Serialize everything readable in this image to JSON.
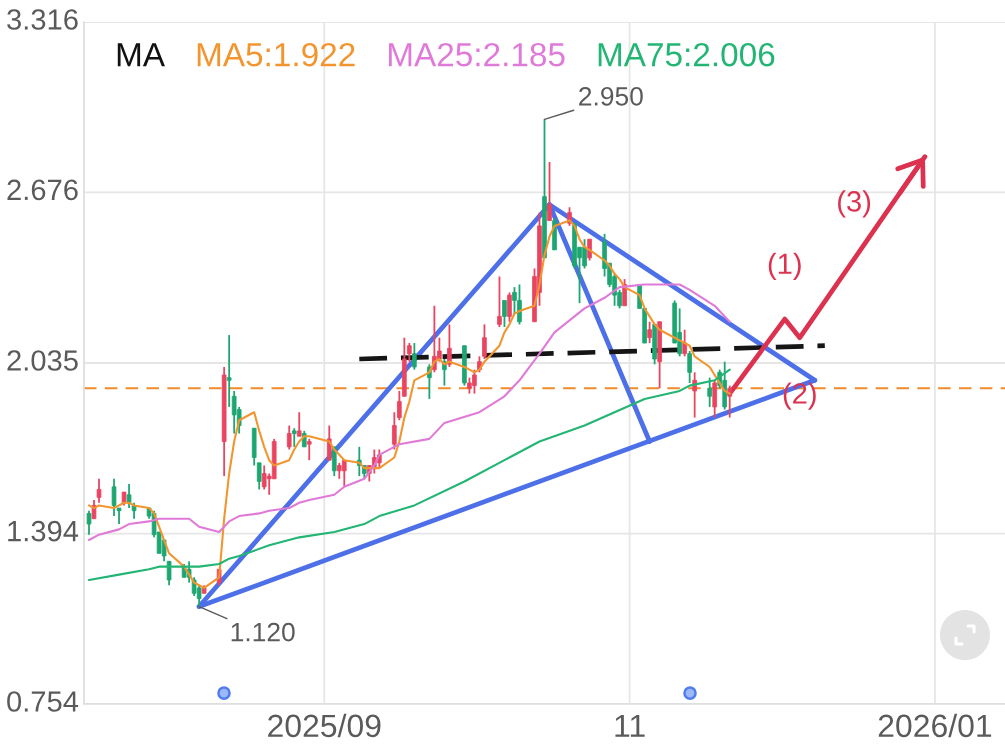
{
  "chart_data": {
    "type": "candlestick",
    "x": [
      "2025-07-16",
      "2025-07-17",
      "2025-07-18",
      "2025-07-21",
      "2025-07-22",
      "2025-07-23",
      "2025-07-24",
      "2025-07-25",
      "2025-07-28",
      "2025-07-29",
      "2025-07-30",
      "2025-07-31",
      "2025-08-01",
      "2025-08-04",
      "2025-08-05",
      "2025-08-06",
      "2025-08-07",
      "2025-08-08",
      "2025-08-11",
      "2025-08-12",
      "2025-08-13",
      "2025-08-14",
      "2025-08-15",
      "2025-08-18",
      "2025-08-19",
      "2025-08-20",
      "2025-08-21",
      "2025-08-22",
      "2025-08-25",
      "2025-08-26",
      "2025-08-27",
      "2025-08-28",
      "2025-08-29",
      "2025-09-02",
      "2025-09-03",
      "2025-09-04",
      "2025-09-05",
      "2025-09-08",
      "2025-09-09",
      "2025-09-10",
      "2025-09-11",
      "2025-09-12",
      "2025-09-15",
      "2025-09-16",
      "2025-09-17",
      "2025-09-18",
      "2025-09-19",
      "2025-09-22",
      "2025-09-23",
      "2025-09-24",
      "2025-09-25",
      "2025-09-26",
      "2025-09-29",
      "2025-09-30",
      "2025-10-01",
      "2025-10-02",
      "2025-10-03",
      "2025-10-06",
      "2025-10-07",
      "2025-10-08",
      "2025-10-09",
      "2025-10-10",
      "2025-10-13",
      "2025-10-14",
      "2025-10-15",
      "2025-10-16",
      "2025-10-17",
      "2025-10-20",
      "2025-10-21",
      "2025-10-22",
      "2025-10-23",
      "2025-10-24",
      "2025-10-27",
      "2025-10-28",
      "2025-10-29",
      "2025-10-30",
      "2025-10-31",
      "2025-11-03",
      "2025-11-04",
      "2025-11-05",
      "2025-11-06",
      "2025-11-07",
      "2025-11-10",
      "2025-11-11",
      "2025-11-12",
      "2025-11-13",
      "2025-11-14",
      "2025-11-17",
      "2025-11-18",
      "2025-11-19",
      "2025-11-20",
      "2025-11-21"
    ],
    "ohlc": [
      [
        1.47,
        1.48,
        1.39,
        1.43
      ],
      [
        1.45,
        1.52,
        1.45,
        1.5
      ],
      [
        1.53,
        1.6,
        1.51,
        1.56
      ],
      [
        1.57,
        1.6,
        1.46,
        1.5
      ],
      [
        1.49,
        1.49,
        1.43,
        1.48
      ],
      [
        1.51,
        1.55,
        1.5,
        1.55
      ],
      [
        1.54,
        1.58,
        1.49,
        1.51
      ],
      [
        1.5,
        1.51,
        1.45,
        1.48
      ],
      [
        1.49,
        1.49,
        1.45,
        1.46
      ],
      [
        1.47,
        1.48,
        1.38,
        1.39
      ],
      [
        1.4,
        1.4,
        1.32,
        1.32
      ],
      [
        1.37,
        1.37,
        1.29,
        1.31
      ],
      [
        1.29,
        1.29,
        1.2,
        1.22
      ],
      [
        1.27,
        1.28,
        1.23,
        1.23
      ],
      [
        1.26,
        1.29,
        1.21,
        1.23
      ],
      [
        1.22,
        1.23,
        1.16,
        1.17
      ],
      [
        1.19,
        1.2,
        1.12,
        1.15
      ],
      [
        1.17,
        1.2,
        1.17,
        1.19
      ],
      [
        1.21,
        1.26,
        1.2,
        1.26
      ],
      [
        1.74,
        2.02,
        1.61,
        1.99
      ],
      [
        1.98,
        2.14,
        1.87,
        1.97
      ],
      [
        1.91,
        1.93,
        1.77,
        1.84
      ],
      [
        1.86,
        1.87,
        1.77,
        1.8
      ],
      [
        1.79,
        1.79,
        1.65,
        1.68
      ],
      [
        1.66,
        1.66,
        1.56,
        1.59
      ],
      [
        1.57,
        1.65,
        1.56,
        1.62
      ],
      [
        1.6,
        1.62,
        1.54,
        1.61
      ],
      [
        1.6,
        1.75,
        1.6,
        1.74
      ],
      [
        1.72,
        1.8,
        1.71,
        1.77
      ],
      [
        1.78,
        1.79,
        1.72,
        1.77
      ],
      [
        1.76,
        1.85,
        1.76,
        1.78
      ],
      [
        1.77,
        1.78,
        1.72,
        1.72
      ],
      [
        1.73,
        1.75,
        1.67,
        1.74
      ],
      [
        1.67,
        1.8,
        1.67,
        1.75
      ],
      [
        1.72,
        1.72,
        1.61,
        1.63
      ],
      [
        1.63,
        1.66,
        1.6,
        1.65
      ],
      [
        1.63,
        1.67,
        1.57,
        1.67
      ],
      [
        1.67,
        1.72,
        1.61,
        1.65
      ],
      [
        1.65,
        1.65,
        1.6,
        1.62
      ],
      [
        1.62,
        1.65,
        1.59,
        1.65
      ],
      [
        1.64,
        1.71,
        1.62,
        1.68
      ],
      [
        1.66,
        1.71,
        1.64,
        1.69
      ],
      [
        1.73,
        1.85,
        1.71,
        1.8
      ],
      [
        1.83,
        1.93,
        1.82,
        1.89
      ],
      [
        1.91,
        2.13,
        1.91,
        2.05
      ],
      [
        2.07,
        2.11,
        2.04,
        2.1
      ],
      [
        2.07,
        2.11,
        2.01,
        2.02
      ],
      [
        2.02,
        2.03,
        1.9,
        1.98
      ],
      [
        2.01,
        2.25,
        2.0,
        2.06
      ],
      [
        2.05,
        2.13,
        2.04,
        2.08
      ],
      [
        2.04,
        2.05,
        1.95,
        2.01
      ],
      [
        2.03,
        2.18,
        2.02,
        2.09
      ],
      [
        2.1,
        2.1,
        1.95,
        1.96
      ],
      [
        1.94,
        1.98,
        1.92,
        1.96
      ],
      [
        1.95,
        2.01,
        1.92,
        1.99
      ],
      [
        2.01,
        2.06,
        2.0,
        2.04
      ],
      [
        2.06,
        2.18,
        2.05,
        2.13
      ],
      [
        2.18,
        2.36,
        2.17,
        2.21
      ],
      [
        2.27,
        2.27,
        2.17,
        2.21
      ],
      [
        2.21,
        2.3,
        2.19,
        2.29
      ],
      [
        2.3,
        2.32,
        2.22,
        2.27
      ],
      [
        2.27,
        2.33,
        2.18,
        2.19
      ],
      [
        2.19,
        2.39,
        2.19,
        2.36
      ],
      [
        2.3,
        2.6,
        2.25,
        2.55
      ],
      [
        2.66,
        2.95,
        2.43,
        2.43
      ],
      [
        2.57,
        2.79,
        2.57,
        2.63
      ],
      [
        2.57,
        2.58,
        2.46,
        2.46
      ],
      [
        2.56,
        2.62,
        2.55,
        2.6
      ],
      [
        2.56,
        2.56,
        2.39,
        2.4
      ],
      [
        2.47,
        2.47,
        2.26,
        2.43
      ],
      [
        2.47,
        2.5,
        2.39,
        2.4
      ],
      [
        2.43,
        2.5,
        2.42,
        2.5
      ],
      [
        2.49,
        2.52,
        2.36,
        2.39
      ],
      [
        2.41,
        2.41,
        2.32,
        2.33
      ],
      [
        2.36,
        2.37,
        2.25,
        2.29
      ],
      [
        2.3,
        2.31,
        2.24,
        2.25
      ],
      [
        2.25,
        2.35,
        2.25,
        2.33
      ],
      [
        2.33,
        2.33,
        2.24,
        2.24
      ],
      [
        2.24,
        2.24,
        2.11,
        2.11
      ],
      [
        2.13,
        2.19,
        2.11,
        2.16
      ],
      [
        2.18,
        2.18,
        2.03,
        2.05
      ],
      [
        2.04,
        2.19,
        1.94,
        2.19
      ],
      [
        2.26,
        2.27,
        2.11,
        2.11
      ],
      [
        2.15,
        2.24,
        2.06,
        2.07
      ],
      [
        2.07,
        2.16,
        2.06,
        2.11
      ],
      [
        2.07,
        2.08,
        1.96,
        2.0
      ],
      [
        1.93,
        2.0,
        1.83,
        1.97
      ],
      [
        1.94,
        1.98,
        1.87,
        1.91
      ],
      [
        1.87,
        1.97,
        1.83,
        1.96
      ],
      [
        2.0,
        2.01,
        1.94,
        1.95
      ],
      [
        1.97,
        2.04,
        1.86,
        1.87
      ],
      [
        1.91,
        1.95,
        1.83,
        1.94
      ]
    ],
    "series": [
      {
        "name": "MA5:1.922",
        "type": "line",
        "color": "#f3952f",
        "values": [
          1.5,
          1.49,
          1.5,
          1.49,
          1.5,
          1.51,
          1.51,
          1.5,
          1.49,
          1.47,
          1.42,
          1.37,
          1.32,
          1.27,
          1.24,
          1.21,
          1.2,
          1.19,
          1.23,
          1.45,
          1.62,
          1.74,
          1.82,
          1.85,
          1.78,
          1.72,
          1.67,
          1.65,
          1.67,
          1.71,
          1.74,
          1.76,
          1.76,
          1.74,
          1.71,
          1.69,
          1.67,
          1.66,
          1.64,
          1.64,
          1.64,
          1.64,
          1.68,
          1.74,
          1.83,
          1.89,
          1.97,
          2.0,
          2.04,
          2.05,
          2.03,
          2.04,
          2.02,
          2.01,
          2.0,
          2.01,
          2.04,
          2.1,
          2.15,
          2.18,
          2.22,
          2.23,
          2.25,
          2.33,
          2.44,
          2.51,
          2.55,
          2.57,
          2.55,
          2.5,
          2.47,
          2.46,
          2.42,
          2.4,
          2.37,
          2.35,
          2.32,
          2.29,
          2.24,
          2.21,
          2.18,
          2.16,
          2.13,
          2.12,
          2.11,
          2.1,
          2.06,
          2.02,
          1.99,
          1.96,
          1.93,
          1.92
        ]
      },
      {
        "name": "MA25:2.185",
        "type": "line",
        "color": "#e07ad8",
        "x": [
          "2025-07-16",
          "2025-07-18",
          "2025-07-22",
          "2025-07-24",
          "2025-07-28",
          "2025-07-30",
          "2025-08-01",
          "2025-08-05",
          "2025-08-07",
          "2025-08-11",
          "2025-08-12",
          "2025-08-13",
          "2025-08-15",
          "2025-08-19",
          "2025-08-21",
          "2025-08-25",
          "2025-08-27",
          "2025-08-29",
          "2025-09-03",
          "2025-09-05",
          "2025-09-09",
          "2025-09-11",
          "2025-09-12",
          "2025-09-16",
          "2025-09-22",
          "2025-09-25",
          "2025-10-02",
          "2025-10-07",
          "2025-10-10",
          "2025-10-14",
          "2025-10-17",
          "2025-10-21",
          "2025-10-23",
          "2025-10-27",
          "2025-10-30",
          "2025-11-04",
          "2025-11-06",
          "2025-11-11",
          "2025-11-13",
          "2025-11-18",
          "2025-11-20",
          "2025-11-21"
        ],
        "values": [
          1.37,
          1.39,
          1.41,
          1.43,
          1.44,
          1.45,
          1.45,
          1.45,
          1.42,
          1.4,
          1.42,
          1.44,
          1.46,
          1.47,
          1.48,
          1.49,
          1.51,
          1.52,
          1.54,
          1.57,
          1.6,
          1.65,
          1.69,
          1.73,
          1.75,
          1.81,
          1.85,
          1.91,
          1.97,
          2.07,
          2.15,
          2.21,
          2.24,
          2.28,
          2.32,
          2.33,
          2.33,
          2.33,
          2.31,
          2.25,
          2.21,
          2.19
        ]
      },
      {
        "name": "MA75:2.006",
        "type": "line",
        "color": "#22b573",
        "x": [
          "2025-07-16",
          "2025-07-22",
          "2025-07-28",
          "2025-07-30",
          "2025-08-01",
          "2025-08-07",
          "2025-08-11",
          "2025-08-13",
          "2025-08-15",
          "2025-08-21",
          "2025-08-27",
          "2025-09-03",
          "2025-09-09",
          "2025-09-12",
          "2025-09-19",
          "2025-09-29",
          "2025-10-07",
          "2025-10-14",
          "2025-10-23",
          "2025-10-29",
          "2025-11-04",
          "2025-11-11",
          "2025-11-13",
          "2025-11-18",
          "2025-11-21"
        ],
        "values": [
          1.22,
          1.24,
          1.26,
          1.27,
          1.27,
          1.27,
          1.28,
          1.3,
          1.31,
          1.35,
          1.38,
          1.4,
          1.43,
          1.46,
          1.5,
          1.59,
          1.67,
          1.74,
          1.8,
          1.85,
          1.9,
          1.93,
          1.95,
          1.97,
          2.01
        ]
      },
      {
        "type": "line",
        "color": "#4d6fe8",
        "x": [
          "2025-08-07",
          "2025-10-16",
          "2025-11-05"
        ],
        "values": [
          1.12,
          2.63,
          1.74
        ]
      },
      {
        "type": "line",
        "color": "#4d6fe8",
        "x": [
          "2025-10-16",
          "2025-12-08"
        ],
        "values": [
          2.63,
          1.97
        ]
      },
      {
        "type": "line",
        "color": "#4d6fe8",
        "x": [
          "2025-08-07",
          "2025-12-08"
        ],
        "values": [
          1.12,
          1.97
        ]
      },
      {
        "type": "line",
        "color": "#151515",
        "line_style": "dashed",
        "x": [
          "2025-09-08",
          "2025-12-10"
        ],
        "values": [
          2.05,
          2.1
        ]
      },
      {
        "type": "line",
        "color": "#dc3250",
        "x": [
          "2025-11-21",
          "2025-12-02",
          "2025-12-05",
          "2025-12-30"
        ],
        "values": [
          1.92,
          2.2,
          2.13,
          2.81
        ]
      }
    ],
    "legend_title": "MA",
    "legend": "top left",
    "xlim": [
      "2025-07-15",
      "2026-01-15"
    ],
    "xticks": [
      {
        "value": "2025-09-01",
        "label": "2025/09"
      },
      {
        "value": "2025-11-01",
        "label": "11"
      },
      {
        "value": "2026-01-01",
        "label": "2026/01"
      }
    ],
    "ylim": [
      0.754,
      3.316
    ],
    "yticks": [
      0.754,
      1.394,
      2.035,
      2.676,
      3.316
    ],
    "grid": true,
    "ref_lines": [
      {
        "axis": "y",
        "value": 1.94,
        "color": "#f08a2a",
        "line_style": "dashed"
      }
    ],
    "annotations": [
      {
        "text": "1.120",
        "x": "2025-08-07",
        "y": 1.12
      },
      {
        "text": "2.950",
        "x": "2025-10-15",
        "y": 2.95
      },
      {
        "text": "(1)",
        "x": "2025-12-02",
        "y": 2.2
      },
      {
        "text": "(2)",
        "x": "2025-12-05",
        "y": 2.13
      },
      {
        "text": "(3)",
        "x": "2025-12-30",
        "y": 2.81
      }
    ]
  }
}
